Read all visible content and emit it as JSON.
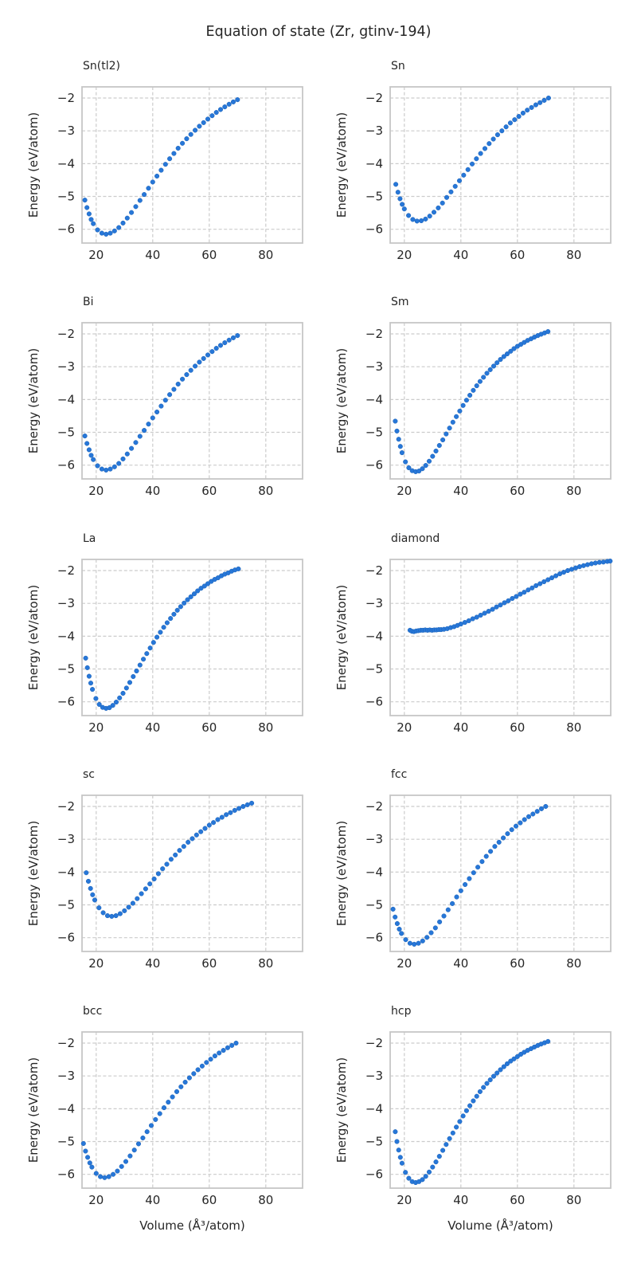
{
  "chart_data": {
    "type": "scatter",
    "title": "Equation of state (Zr, gtinv-194)",
    "xlabel": "Volume (Å³/atom)",
    "ylabel": "Energy (eV/atom)",
    "xlim": [
      15,
      93
    ],
    "ylim": [
      -6.42,
      -1.66
    ],
    "xticks": [
      20,
      40,
      60,
      80
    ],
    "xtick_labels": [
      "20",
      "40",
      "60",
      "80"
    ],
    "yticks": [
      -2,
      -3,
      -4,
      -5,
      -6
    ],
    "ytick_labels": [
      "−2",
      "−3",
      "−4",
      "−5",
      "−6"
    ],
    "grid": true,
    "grid_style": "dashed",
    "layout": {
      "rows": 5,
      "cols": 2
    },
    "marker_color": "#2777d8",
    "marker_edge_color": "#1b61b5",
    "grid_color": "#cccccc",
    "frame_color": "#c6c6c6",
    "text_color": "#262626",
    "subplots": [
      {
        "title": "Sn(tl2)",
        "x": [
          16,
          16.75,
          17.5,
          18.25,
          19,
          20.5,
          22,
          23.5,
          25,
          26.5,
          28,
          29.5,
          31,
          32.5,
          34,
          35.5,
          37,
          38.5,
          40,
          41.5,
          43,
          44.5,
          46,
          47.5,
          49,
          50.5,
          52,
          53.5,
          55,
          56.5,
          58,
          59.5,
          61,
          62.5,
          64,
          65.5,
          67,
          68.5,
          70
        ],
        "y": [
          -5.11,
          -5.34,
          -5.53,
          -5.7,
          -5.83,
          -6.02,
          -6.12,
          -6.15,
          -6.12,
          -6.05,
          -5.95,
          -5.81,
          -5.66,
          -5.49,
          -5.31,
          -5.12,
          -4.94,
          -4.75,
          -4.56,
          -4.38,
          -4.2,
          -4.02,
          -3.85,
          -3.69,
          -3.53,
          -3.38,
          -3.24,
          -3.11,
          -2.98,
          -2.86,
          -2.75,
          -2.64,
          -2.54,
          -2.44,
          -2.35,
          -2.27,
          -2.19,
          -2.12,
          -2.05
        ]
      },
      {
        "title": "Sn",
        "x": [
          17,
          17.75,
          18.5,
          19.25,
          20,
          21.5,
          23,
          24.5,
          26,
          27.5,
          29,
          30.5,
          32,
          33.5,
          35,
          36.5,
          38,
          39.5,
          41,
          42.5,
          44,
          45.5,
          47,
          48.5,
          50,
          51.5,
          53,
          54.5,
          56,
          57.5,
          59,
          60.5,
          62,
          63.5,
          65,
          66.5,
          68,
          69.5,
          71
        ],
        "y": [
          -4.63,
          -4.87,
          -5.07,
          -5.24,
          -5.38,
          -5.58,
          -5.7,
          -5.75,
          -5.74,
          -5.69,
          -5.6,
          -5.48,
          -5.35,
          -5.2,
          -5.03,
          -4.86,
          -4.69,
          -4.52,
          -4.35,
          -4.18,
          -4.01,
          -3.85,
          -3.69,
          -3.54,
          -3.39,
          -3.25,
          -3.12,
          -3.0,
          -2.88,
          -2.76,
          -2.66,
          -2.56,
          -2.46,
          -2.37,
          -2.29,
          -2.21,
          -2.14,
          -2.07,
          -2.0
        ]
      },
      {
        "title": "Bi",
        "x": [
          16,
          16.75,
          17.5,
          18.25,
          19,
          20.5,
          22,
          23.5,
          25,
          26.5,
          28,
          29.5,
          31,
          32.5,
          34,
          35.5,
          37,
          38.5,
          40,
          41.5,
          43,
          44.5,
          46,
          47.5,
          49,
          50.5,
          52,
          53.5,
          55,
          56.5,
          58,
          59.5,
          61,
          62.5,
          64,
          65.5,
          67,
          68.5,
          70
        ],
        "y": [
          -5.11,
          -5.34,
          -5.53,
          -5.7,
          -5.83,
          -6.02,
          -6.12,
          -6.15,
          -6.12,
          -6.05,
          -5.95,
          -5.81,
          -5.66,
          -5.49,
          -5.31,
          -5.12,
          -4.94,
          -4.75,
          -4.56,
          -4.38,
          -4.2,
          -4.02,
          -3.85,
          -3.69,
          -3.53,
          -3.38,
          -3.24,
          -3.11,
          -2.98,
          -2.86,
          -2.75,
          -2.64,
          -2.54,
          -2.44,
          -2.35,
          -2.27,
          -2.19,
          -2.12,
          -2.05
        ]
      },
      {
        "title": "Sm",
        "x": [
          16.8,
          17.4,
          18,
          18.6,
          19.2,
          20.4,
          21.6,
          22.8,
          24,
          25.2,
          26.4,
          27.6,
          28.8,
          30,
          31.2,
          32.4,
          33.6,
          34.8,
          36,
          37.2,
          38.4,
          39.6,
          40.8,
          42,
          43.2,
          44.4,
          45.6,
          46.8,
          48,
          49.2,
          50.4,
          51.6,
          52.8,
          54,
          55.2,
          56.4,
          57.6,
          58.8,
          60,
          61.2,
          62.4,
          63.6,
          64.8,
          66,
          67.2,
          68.4,
          69.6,
          70.8
        ],
        "y": [
          -4.66,
          -4.96,
          -5.21,
          -5.43,
          -5.62,
          -5.9,
          -6.08,
          -6.17,
          -6.2,
          -6.18,
          -6.11,
          -6.01,
          -5.88,
          -5.73,
          -5.57,
          -5.4,
          -5.23,
          -5.05,
          -4.87,
          -4.69,
          -4.52,
          -4.35,
          -4.18,
          -4.02,
          -3.87,
          -3.72,
          -3.58,
          -3.45,
          -3.32,
          -3.2,
          -3.09,
          -2.98,
          -2.88,
          -2.78,
          -2.69,
          -2.61,
          -2.53,
          -2.45,
          -2.38,
          -2.32,
          -2.26,
          -2.2,
          -2.15,
          -2.1,
          -2.05,
          -2.01,
          -1.97,
          -1.93
        ]
      },
      {
        "title": "La",
        "x": [
          16.3,
          16.9,
          17.5,
          18.1,
          18.7,
          19.9,
          21.1,
          22.3,
          23.5,
          24.7,
          25.9,
          27.1,
          28.3,
          29.5,
          30.7,
          31.9,
          33.1,
          34.3,
          35.5,
          36.7,
          37.9,
          39.1,
          40.3,
          41.5,
          42.7,
          43.9,
          45.1,
          46.3,
          47.5,
          48.7,
          49.9,
          51.1,
          52.3,
          53.5,
          54.7,
          55.9,
          57.1,
          58.3,
          59.5,
          60.7,
          61.9,
          63.1,
          64.3,
          65.5,
          66.7,
          67.9,
          69.1,
          70.3
        ],
        "y": [
          -4.67,
          -4.96,
          -5.22,
          -5.43,
          -5.62,
          -5.9,
          -6.08,
          -6.17,
          -6.2,
          -6.18,
          -6.11,
          -6.01,
          -5.88,
          -5.74,
          -5.58,
          -5.41,
          -5.23,
          -5.06,
          -4.88,
          -4.7,
          -4.53,
          -4.36,
          -4.19,
          -4.03,
          -3.88,
          -3.73,
          -3.59,
          -3.46,
          -3.33,
          -3.21,
          -3.1,
          -2.99,
          -2.89,
          -2.8,
          -2.71,
          -2.62,
          -2.54,
          -2.47,
          -2.4,
          -2.33,
          -2.27,
          -2.22,
          -2.16,
          -2.11,
          -2.07,
          -2.02,
          -1.98,
          -1.95
        ]
      },
      {
        "title": "diamond",
        "x": [
          22.0,
          22.7,
          23.4,
          24.2,
          25.0,
          25.8,
          26.6,
          27.4,
          28.2,
          29.0,
          29.8,
          30.6,
          31.4,
          32.2,
          33.0,
          34.0,
          35.2,
          36.4,
          37.6,
          38.8,
          40.0,
          41.4,
          42.8,
          44.2,
          45.6,
          47.0,
          48.4,
          49.8,
          51.2,
          52.6,
          54.0,
          55.4,
          56.8,
          58.2,
          59.6,
          61.0,
          62.4,
          63.8,
          65.2,
          66.6,
          68.0,
          69.4,
          70.8,
          72.2,
          73.6,
          75.0,
          76.4,
          77.8,
          79.2,
          80.6,
          82.0,
          83.4,
          84.8,
          86.2,
          87.6,
          89.0,
          90.4,
          91.8,
          92.8
        ],
        "y": [
          -3.82,
          -3.85,
          -3.86,
          -3.84,
          -3.83,
          -3.82,
          -3.82,
          -3.81,
          -3.82,
          -3.81,
          -3.82,
          -3.81,
          -3.81,
          -3.8,
          -3.8,
          -3.79,
          -3.77,
          -3.74,
          -3.71,
          -3.67,
          -3.63,
          -3.58,
          -3.53,
          -3.47,
          -3.42,
          -3.36,
          -3.3,
          -3.24,
          -3.18,
          -3.11,
          -3.05,
          -2.98,
          -2.92,
          -2.85,
          -2.79,
          -2.72,
          -2.66,
          -2.59,
          -2.53,
          -2.46,
          -2.4,
          -2.34,
          -2.28,
          -2.22,
          -2.16,
          -2.1,
          -2.05,
          -2.0,
          -1.96,
          -1.92,
          -1.88,
          -1.85,
          -1.82,
          -1.79,
          -1.77,
          -1.75,
          -1.74,
          -1.72,
          -1.71
        ]
      },
      {
        "title": "sc",
        "x": [
          16.5,
          17.25,
          18,
          18.75,
          19.5,
          21,
          22.5,
          24,
          25.5,
          27,
          28.5,
          30,
          31.5,
          33,
          34.5,
          36,
          37.5,
          39,
          40.5,
          42,
          43.5,
          45,
          46.5,
          48,
          49.5,
          51,
          52.5,
          54,
          55.5,
          57,
          58.5,
          60,
          61.5,
          63,
          64.5,
          66,
          67.5,
          69,
          70.5,
          72,
          73.5,
          75
        ],
        "y": [
          -4.02,
          -4.28,
          -4.5,
          -4.69,
          -4.85,
          -5.09,
          -5.24,
          -5.33,
          -5.35,
          -5.33,
          -5.27,
          -5.18,
          -5.07,
          -4.95,
          -4.81,
          -4.66,
          -4.51,
          -4.36,
          -4.21,
          -4.05,
          -3.9,
          -3.76,
          -3.61,
          -3.48,
          -3.34,
          -3.22,
          -3.09,
          -2.98,
          -2.87,
          -2.77,
          -2.67,
          -2.57,
          -2.49,
          -2.4,
          -2.33,
          -2.25,
          -2.19,
          -2.12,
          -2.06,
          -2.0,
          -1.95,
          -1.9
        ]
      },
      {
        "title": "fcc",
        "x": [
          16,
          16.75,
          17.5,
          18.25,
          19,
          20.5,
          22,
          23.5,
          25,
          26.5,
          28,
          29.5,
          31,
          32.5,
          34,
          35.5,
          37,
          38.5,
          40,
          41.5,
          43,
          44.5,
          46,
          47.5,
          49,
          50.5,
          52,
          53.5,
          55,
          56.5,
          58,
          59.5,
          61,
          62.5,
          64,
          65.5,
          67,
          68.5,
          70
        ],
        "y": [
          -5.13,
          -5.37,
          -5.57,
          -5.74,
          -5.87,
          -6.06,
          -6.17,
          -6.2,
          -6.17,
          -6.1,
          -5.99,
          -5.85,
          -5.7,
          -5.52,
          -5.34,
          -5.15,
          -4.96,
          -4.76,
          -4.57,
          -4.38,
          -4.2,
          -4.02,
          -3.85,
          -3.68,
          -3.52,
          -3.37,
          -3.22,
          -3.09,
          -2.96,
          -2.83,
          -2.71,
          -2.6,
          -2.5,
          -2.4,
          -2.31,
          -2.23,
          -2.15,
          -2.07,
          -2.0
        ]
      },
      {
        "title": "bcc",
        "x": [
          15.5,
          16.25,
          17,
          17.75,
          18.5,
          20,
          21.5,
          23,
          24.5,
          26,
          27.5,
          29,
          30.5,
          32,
          33.5,
          35,
          36.5,
          38,
          39.5,
          41,
          42.5,
          44,
          45.5,
          47,
          48.5,
          50,
          51.5,
          53,
          54.5,
          56,
          57.5,
          59,
          60.5,
          62,
          63.5,
          65,
          66.5,
          68,
          69.5
        ],
        "y": [
          -5.06,
          -5.29,
          -5.48,
          -5.65,
          -5.78,
          -5.97,
          -6.07,
          -6.1,
          -6.07,
          -6.0,
          -5.9,
          -5.76,
          -5.61,
          -5.44,
          -5.26,
          -5.07,
          -4.89,
          -4.7,
          -4.51,
          -4.33,
          -4.15,
          -3.97,
          -3.8,
          -3.64,
          -3.48,
          -3.33,
          -3.19,
          -3.06,
          -2.93,
          -2.81,
          -2.7,
          -2.59,
          -2.49,
          -2.39,
          -2.3,
          -2.22,
          -2.14,
          -2.07,
          -2.0
        ]
      },
      {
        "title": "hcp",
        "x": [
          16.8,
          17.4,
          18,
          18.6,
          19.2,
          20.4,
          21.6,
          22.8,
          24,
          25.2,
          26.4,
          27.6,
          28.8,
          30,
          31.2,
          32.4,
          33.6,
          34.8,
          36,
          37.2,
          38.4,
          39.6,
          40.8,
          42,
          43.2,
          44.4,
          45.6,
          46.8,
          48,
          49.2,
          50.4,
          51.6,
          52.8,
          54,
          55.2,
          56.4,
          57.6,
          58.8,
          60,
          61.2,
          62.4,
          63.6,
          64.8,
          66,
          67.2,
          68.4,
          69.6,
          70.8
        ],
        "y": [
          -4.7,
          -5.0,
          -5.26,
          -5.48,
          -5.66,
          -5.94,
          -6.12,
          -6.22,
          -6.25,
          -6.22,
          -6.16,
          -6.06,
          -5.93,
          -5.78,
          -5.62,
          -5.45,
          -5.27,
          -5.09,
          -4.91,
          -4.74,
          -4.56,
          -4.39,
          -4.22,
          -4.06,
          -3.91,
          -3.76,
          -3.62,
          -3.48,
          -3.35,
          -3.23,
          -3.12,
          -3.01,
          -2.91,
          -2.81,
          -2.72,
          -2.63,
          -2.55,
          -2.48,
          -2.41,
          -2.34,
          -2.28,
          -2.22,
          -2.17,
          -2.12,
          -2.07,
          -2.03,
          -1.99,
          -1.95
        ]
      }
    ]
  }
}
